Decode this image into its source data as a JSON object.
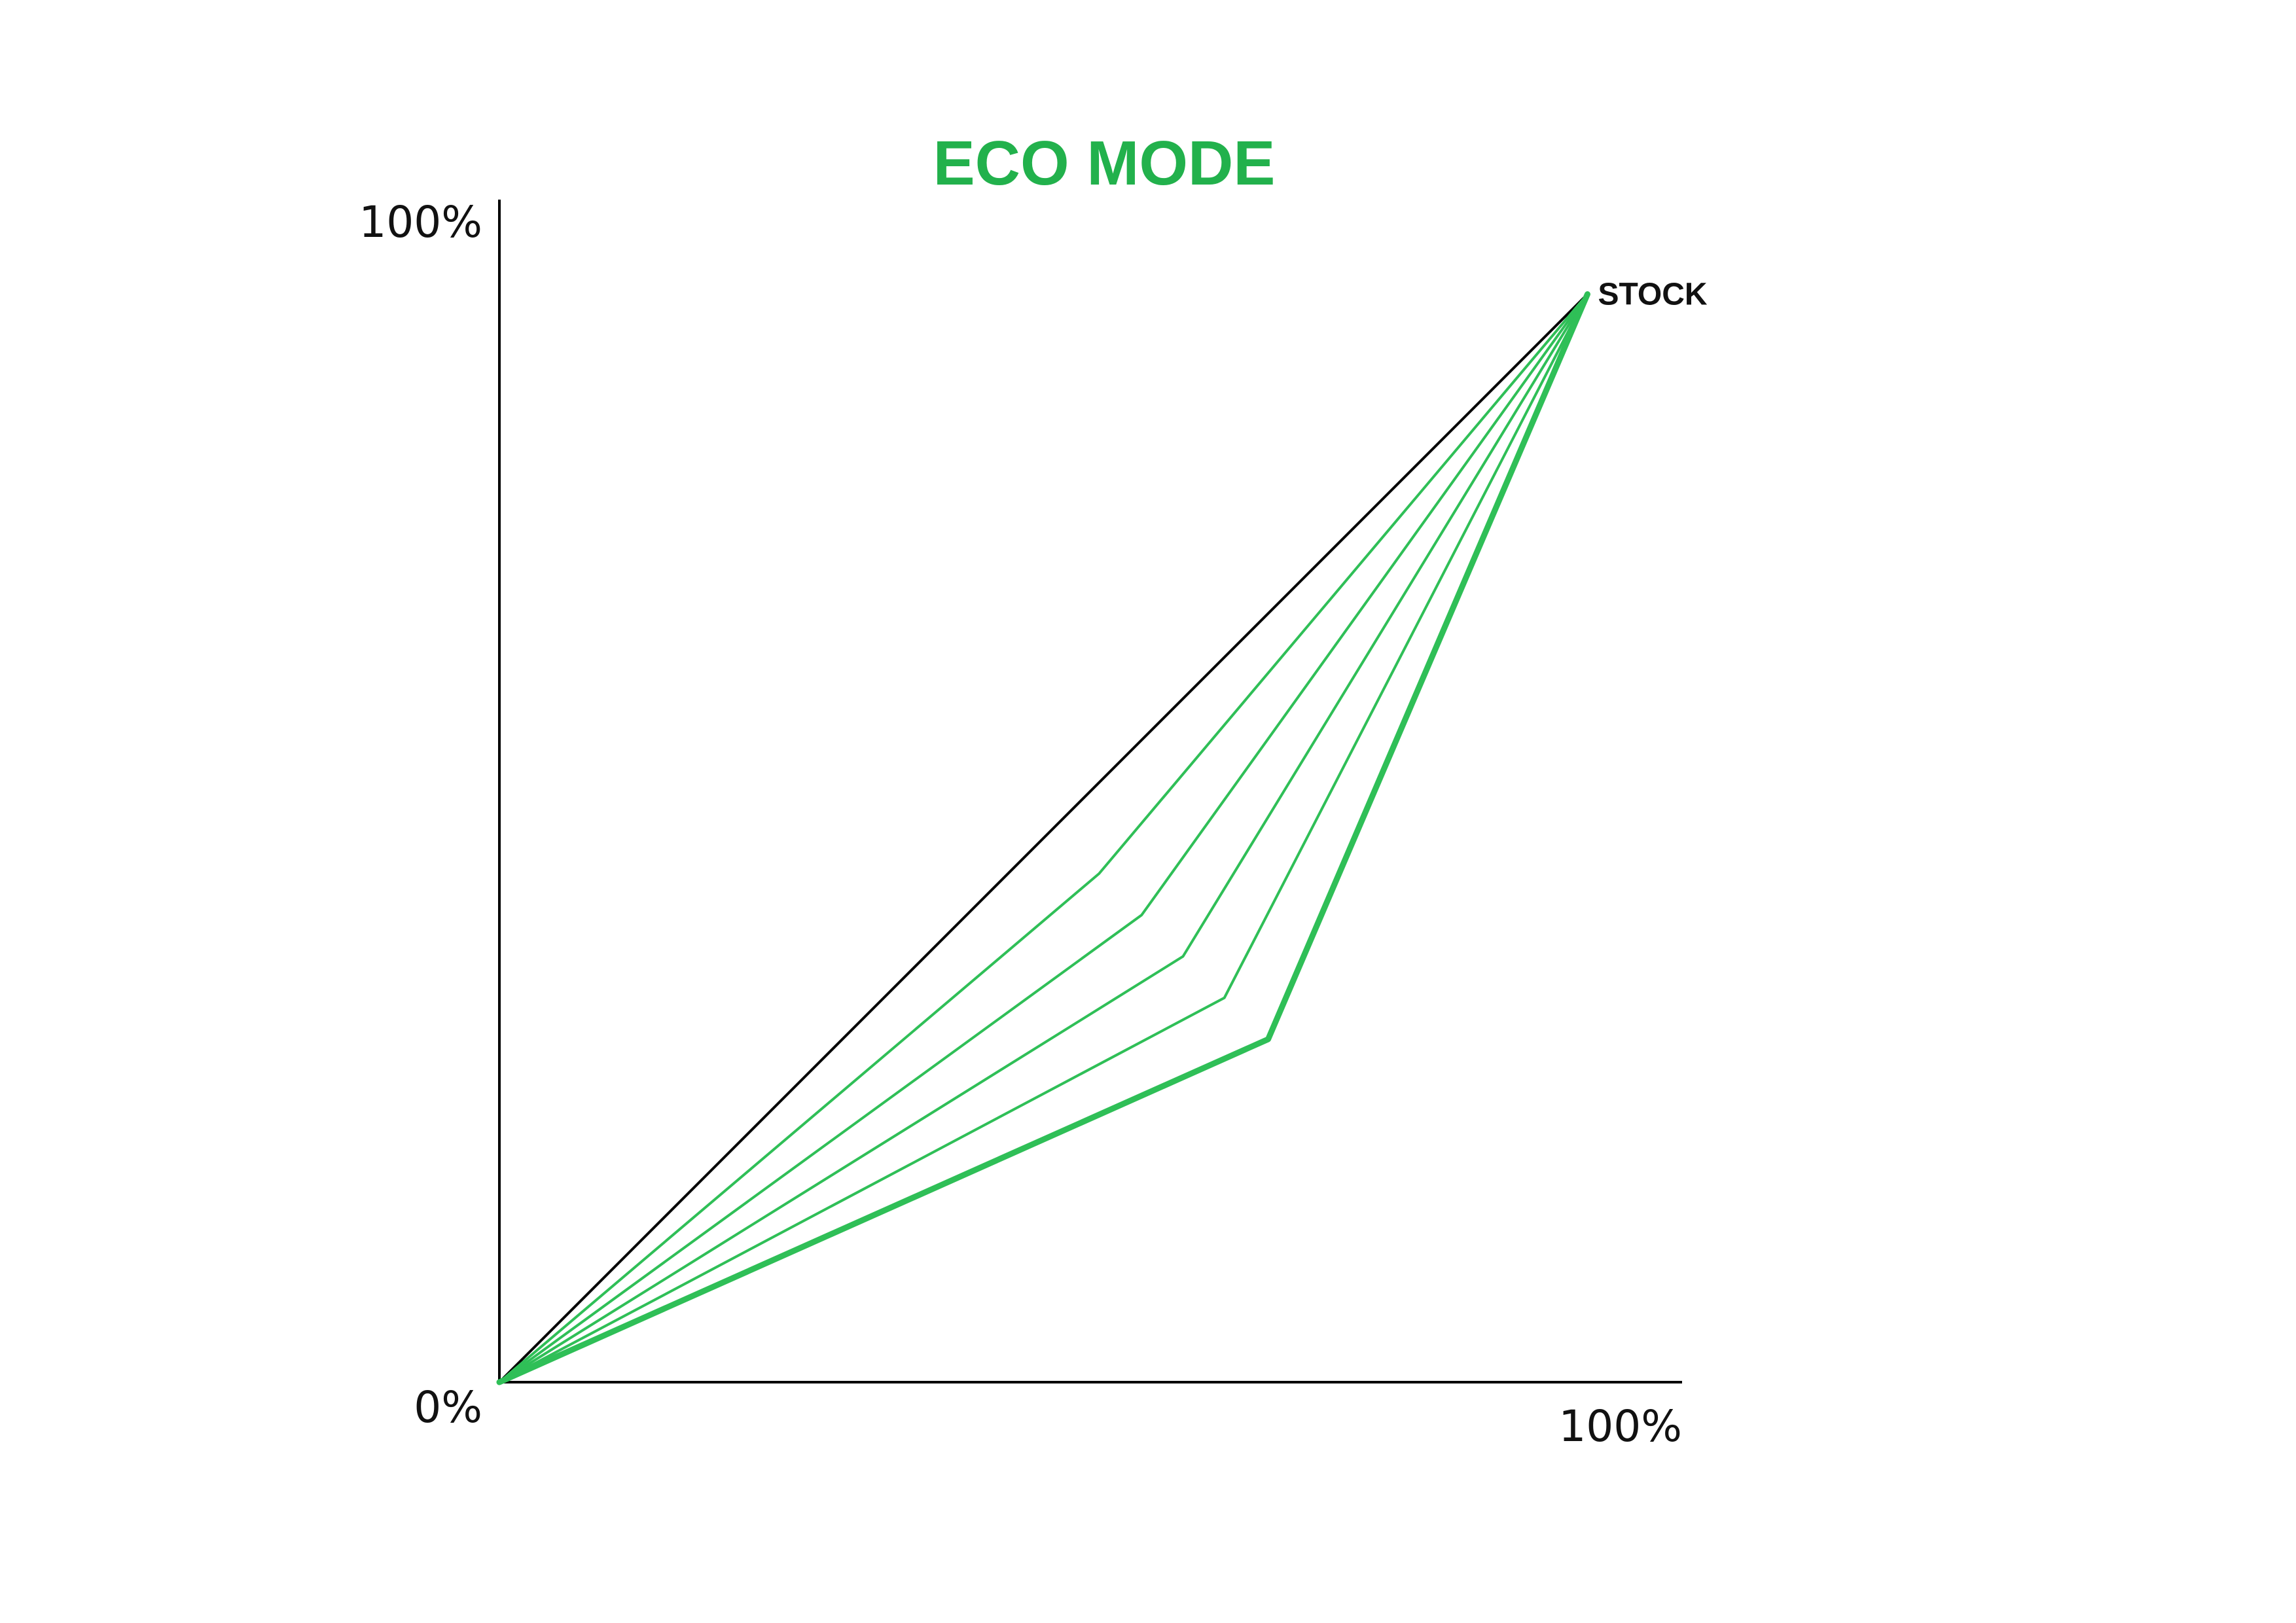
{
  "colors": {
    "accent": "#22b14c",
    "line_green": "#2fbf57",
    "axis": "#000000",
    "background": "#ffffff"
  },
  "chart_data": {
    "type": "line",
    "title": "ECO MODE",
    "subtitle": "",
    "xlabel": "",
    "ylabel": "",
    "xlim": [
      0,
      100
    ],
    "ylim": [
      0,
      100
    ],
    "grid": false,
    "legend": "none",
    "ticks": {
      "y_top": "100%",
      "origin": "0%",
      "x_right": "100%"
    },
    "annotations": [
      {
        "text": "STOCK",
        "x": 92,
        "y": 92
      }
    ],
    "series": [
      {
        "points": [
          [
            0,
            0
          ],
          [
            92,
            92
          ]
        ],
        "color": "#000000",
        "weight": "thin"
      },
      {
        "points": [
          [
            0,
            0
          ],
          [
            50.7,
            43
          ],
          [
            92,
            92
          ]
        ],
        "color": "#2fbf57",
        "weight": "thin"
      },
      {
        "points": [
          [
            0,
            0
          ],
          [
            54.3,
            39.5
          ],
          [
            92,
            92
          ]
        ],
        "color": "#2fbf57",
        "weight": "thin"
      },
      {
        "points": [
          [
            0,
            0
          ],
          [
            57.8,
            36
          ],
          [
            92,
            92
          ]
        ],
        "color": "#2fbf57",
        "weight": "thin"
      },
      {
        "points": [
          [
            0,
            0
          ],
          [
            61.3,
            32.5
          ],
          [
            92,
            92
          ]
        ],
        "color": "#2fbf57",
        "weight": "thin"
      },
      {
        "points": [
          [
            0,
            0
          ],
          [
            65,
            29
          ],
          [
            92,
            92
          ]
        ],
        "color": "#2fbf57",
        "weight": "thick"
      }
    ]
  }
}
